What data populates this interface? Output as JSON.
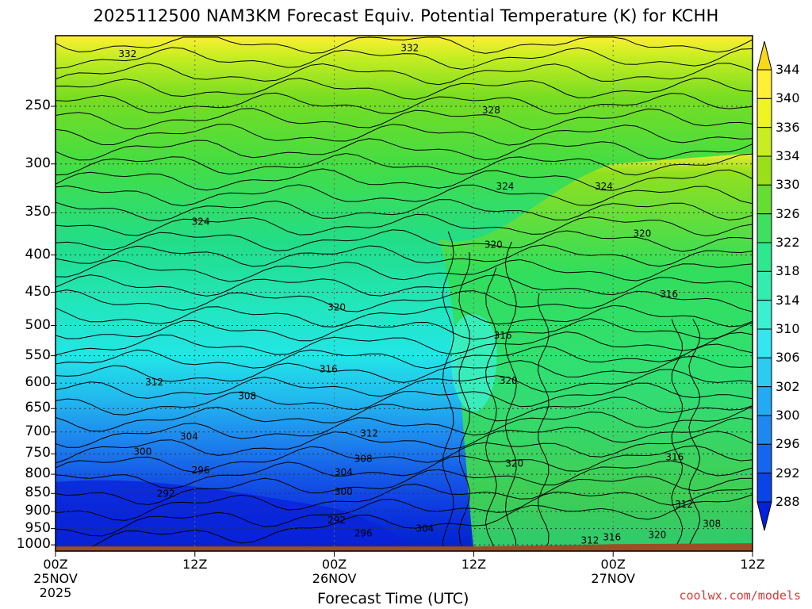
{
  "chart_data": {
    "type": "heatmap",
    "title": "2025112500 NAM3KM Forecast Equiv. Potential Temperature (K) for KCHH",
    "xlabel": "Forecast Time (UTC)",
    "ylabel": "",
    "x_ticks": [
      {
        "hours": 0,
        "lines": [
          "00Z",
          "25NOV",
          "2025"
        ]
      },
      {
        "hours": 12,
        "lines": [
          "12Z"
        ]
      },
      {
        "hours": 24,
        "lines": [
          "00Z",
          "26NOV"
        ]
      },
      {
        "hours": 36,
        "lines": [
          "12Z"
        ]
      },
      {
        "hours": 48,
        "lines": [
          "00Z",
          "27NOV"
        ]
      },
      {
        "hours": 60,
        "lines": [
          "12Z"
        ]
      }
    ],
    "xlim": [
      0,
      60
    ],
    "y_ticks": [
      250,
      300,
      350,
      400,
      450,
      500,
      550,
      600,
      650,
      700,
      750,
      800,
      850,
      900,
      950,
      1000
    ],
    "ylim_hpa": [
      200,
      1020
    ],
    "y_scale": "log-pressure (inverted)",
    "colorbar": {
      "levels": [
        288,
        292,
        296,
        300,
        302,
        306,
        310,
        314,
        318,
        322,
        326,
        330,
        334,
        336,
        340,
        344
      ],
      "colors": [
        "#0022dd",
        "#0a44e6",
        "#1566ee",
        "#1e88f0",
        "#22aaf2",
        "#2cccf0",
        "#33e6f0",
        "#3af0d0",
        "#33ecb0",
        "#2ee890",
        "#3ee060",
        "#66dd33",
        "#99e01a",
        "#c8ee22",
        "#eef522",
        "#fff033",
        "#f8d81c"
      ]
    },
    "contour_labels": [
      {
        "value": "332",
        "hours": 6.2,
        "hpa": 212
      },
      {
        "value": "332",
        "hours": 30.5,
        "hpa": 208
      },
      {
        "value": "328",
        "hours": 37.5,
        "hpa": 253
      },
      {
        "value": "324",
        "hours": 38.7,
        "hpa": 322
      },
      {
        "value": "324",
        "hours": 47.2,
        "hpa": 322
      },
      {
        "value": "324",
        "hours": 12.5,
        "hpa": 360
      },
      {
        "value": "320",
        "hours": 37.7,
        "hpa": 387
      },
      {
        "value": "320",
        "hours": 50.5,
        "hpa": 374
      },
      {
        "value": "320",
        "hours": 24.2,
        "hpa": 472
      },
      {
        "value": "316",
        "hours": 52.8,
        "hpa": 453
      },
      {
        "value": "316",
        "hours": 38.5,
        "hpa": 516
      },
      {
        "value": "316",
        "hours": 23.5,
        "hpa": 574
      },
      {
        "value": "320",
        "hours": 39.0,
        "hpa": 595
      },
      {
        "value": "312",
        "hours": 8.5,
        "hpa": 598
      },
      {
        "value": "308",
        "hours": 16.5,
        "hpa": 625
      },
      {
        "value": "312",
        "hours": 27.0,
        "hpa": 703
      },
      {
        "value": "304",
        "hours": 11.5,
        "hpa": 710
      },
      {
        "value": "300",
        "hours": 7.5,
        "hpa": 745
      },
      {
        "value": "308",
        "hours": 26.5,
        "hpa": 762
      },
      {
        "value": "296",
        "hours": 12.5,
        "hpa": 790
      },
      {
        "value": "320",
        "hours": 39.5,
        "hpa": 773
      },
      {
        "value": "316",
        "hours": 53.3,
        "hpa": 758
      },
      {
        "value": "304",
        "hours": 24.8,
        "hpa": 795
      },
      {
        "value": "292",
        "hours": 9.5,
        "hpa": 850
      },
      {
        "value": "300",
        "hours": 24.8,
        "hpa": 845
      },
      {
        "value": "312",
        "hours": 54.1,
        "hpa": 880
      },
      {
        "value": "292",
        "hours": 24.2,
        "hpa": 925
      },
      {
        "value": "296",
        "hours": 26.5,
        "hpa": 964
      },
      {
        "value": "304",
        "hours": 31.8,
        "hpa": 950
      },
      {
        "value": "308",
        "hours": 56.5,
        "hpa": 935
      },
      {
        "value": "316",
        "hours": 47.9,
        "hpa": 976
      },
      {
        "value": "320",
        "hours": 51.8,
        "hpa": 969
      },
      {
        "value": "312",
        "hours": 46.0,
        "hpa": 986
      }
    ],
    "ground": {
      "color": "#9b4f27",
      "hpa_left": 1005,
      "hpa_right": 995
    }
  },
  "credit": "coolwx.com/models"
}
